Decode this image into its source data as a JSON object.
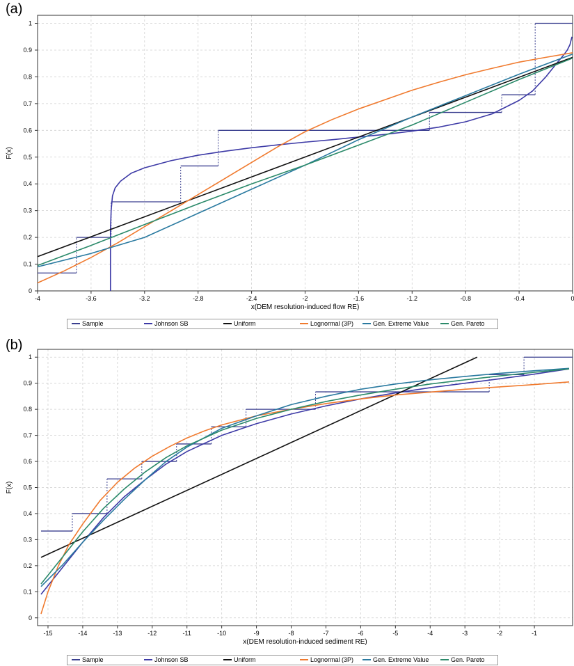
{
  "panels": [
    {
      "label": "(a)",
      "chart_data": {
        "type": "line",
        "title": "",
        "xlabel": "x(DEM resolution-induced flow RE)",
        "ylabel": "F(x)",
        "xlim": [
          -4,
          0
        ],
        "ylim": [
          0,
          1.03
        ],
        "xticks": [
          -4,
          -3.6,
          -3.2,
          -2.8,
          -2.4,
          -2,
          -1.6,
          -1.2,
          -0.8,
          -0.4,
          0
        ],
        "xtick_labels": [
          "-4",
          "-3.6",
          "-3.2",
          "-2.8",
          "-2.4",
          "-2",
          "-1.6",
          "-1.2",
          "-0.8",
          "-0.4",
          "0"
        ],
        "yticks": [
          0,
          0.1,
          0.2,
          0.3,
          0.4,
          0.5,
          0.6,
          0.7,
          0.8,
          0.9,
          1
        ],
        "ytick_labels": [
          "0",
          "0.1",
          "0.2",
          "0.3",
          "0.4",
          "0.5",
          "0.6",
          "0.7",
          "0.8",
          "0.9",
          "1"
        ],
        "grid": true,
        "legend_position": "bottom",
        "series": [
          {
            "name": "Sample",
            "kind": "step",
            "color": "#3a3f8f",
            "x": [
              -4,
              -3.71,
              -3.71,
              -3.45,
              -3.45,
              -2.93,
              -2.93,
              -2.65,
              -2.65,
              -1.07,
              -1.07,
              -0.53,
              -0.53,
              -0.28,
              -0.28,
              0
            ],
            "y": [
              0.067,
              0.067,
              0.2,
              0.2,
              0.333,
              0.333,
              0.467,
              0.467,
              0.6,
              0.6,
              0.667,
              0.667,
              0.733,
              0.733,
              1.0,
              1.0
            ]
          },
          {
            "name": "Johnson SB",
            "kind": "line",
            "color": "#3d3aa6",
            "x": [
              -3.455,
              -3.455,
              -3.45,
              -3.44,
              -3.42,
              -3.38,
              -3.3,
              -3.2,
              -3.0,
              -2.8,
              -2.6,
              -2.4,
              -2.2,
              -2.0,
              -1.8,
              -1.6,
              -1.4,
              -1.2,
              -1.0,
              -0.8,
              -0.6,
              -0.4,
              -0.3,
              -0.2,
              -0.12,
              -0.07,
              -0.04,
              -0.02,
              -0.005
            ],
            "y": [
              0.0,
              0.23,
              0.3,
              0.355,
              0.385,
              0.41,
              0.44,
              0.46,
              0.487,
              0.507,
              0.522,
              0.535,
              0.546,
              0.556,
              0.565,
              0.575,
              0.585,
              0.597,
              0.612,
              0.632,
              0.662,
              0.712,
              0.747,
              0.8,
              0.85,
              0.88,
              0.9,
              0.92,
              0.95
            ]
          },
          {
            "name": "Uniform",
            "kind": "line",
            "color": "#111111",
            "x": [
              -4,
              0
            ],
            "y": [
              0.128,
              0.873
            ]
          },
          {
            "name": "Lognormal (3P)",
            "kind": "line",
            "color": "#f07a2e",
            "x": [
              -4.0,
              -3.8,
              -3.6,
              -3.4,
              -3.2,
              -3.0,
              -2.8,
              -2.6,
              -2.4,
              -2.2,
              -2.0,
              -1.8,
              -1.6,
              -1.4,
              -1.2,
              -1.0,
              -0.8,
              -0.6,
              -0.4,
              -0.2,
              0.0
            ],
            "y": [
              0.03,
              0.075,
              0.125,
              0.18,
              0.24,
              0.3,
              0.36,
              0.42,
              0.48,
              0.54,
              0.595,
              0.64,
              0.68,
              0.715,
              0.75,
              0.78,
              0.808,
              0.832,
              0.855,
              0.873,
              0.89
            ]
          },
          {
            "name": "Gen. Extreme Value",
            "kind": "line",
            "color": "#2a7aa0",
            "x": [
              -4.0,
              -3.6,
              -3.2,
              -2.8,
              -2.4,
              -2.0,
              -1.6,
              -1.2,
              -0.8,
              -0.4,
              0.0
            ],
            "y": [
              0.09,
              0.14,
              0.2,
              0.29,
              0.38,
              0.47,
              0.565,
              0.65,
              0.73,
              0.81,
              0.885
            ]
          },
          {
            "name": "Gen. Pareto",
            "kind": "line",
            "color": "#2b8a6a",
            "x": [
              -4.0,
              -3.6,
              -3.2,
              -2.8,
              -2.4,
              -2.0,
              -1.6,
              -1.2,
              -0.8,
              -0.4,
              0.0
            ],
            "y": [
              0.095,
              0.17,
              0.248,
              0.325,
              0.4,
              0.47,
              0.545,
              0.62,
              0.705,
              0.79,
              0.87
            ]
          }
        ]
      }
    },
    {
      "label": "(b)",
      "chart_data": {
        "type": "line",
        "title": "",
        "xlabel": "x(DEM resolution-induced sediment RE)",
        "ylabel": "F(x)",
        "xlim": [
          -15.3,
          0.1
        ],
        "ylim": [
          -0.03,
          1.03
        ],
        "xticks": [
          -15,
          -14,
          -13,
          -12,
          -11,
          -10,
          -9,
          -8,
          -7,
          -6,
          -5,
          -4,
          -3,
          -2,
          -1
        ],
        "xtick_labels": [
          "-15",
          "-14",
          "-13",
          "-12",
          "-11",
          "-10",
          "-9",
          "-8",
          "-7",
          "-6",
          "-5",
          "-4",
          "-3",
          "-2",
          "-1"
        ],
        "yticks": [
          0,
          0.1,
          0.2,
          0.3,
          0.4,
          0.5,
          0.6,
          0.7,
          0.8,
          0.9,
          1
        ],
        "ytick_labels": [
          "0",
          "0.1",
          "0.2",
          "0.3",
          "0.4",
          "0.5",
          "0.6",
          "0.7",
          "0.8",
          "0.9",
          "1"
        ],
        "grid": true,
        "legend_position": "bottom",
        "series": [
          {
            "name": "Sample",
            "kind": "step",
            "color": "#3a3f8f",
            "x": [
              -15.2,
              -14.3,
              -14.3,
              -13.3,
              -13.3,
              -12.3,
              -12.3,
              -11.3,
              -11.3,
              -10.3,
              -10.3,
              -9.3,
              -9.3,
              -7.3,
              -7.3,
              -2.3,
              -2.3,
              -1.3,
              -1.3,
              0.1
            ],
            "y": [
              0.333,
              0.333,
              0.4,
              0.4,
              0.533,
              0.533,
              0.6,
              0.6,
              0.667,
              0.667,
              0.733,
              0.733,
              0.8,
              0.8,
              0.867,
              0.867,
              0.933,
              0.933,
              1.0,
              1.0
            ]
          },
          {
            "name": "Johnson SB",
            "kind": "line",
            "color": "#3d3aa6",
            "x": [
              -15.2,
              -14.6,
              -14.0,
              -13.4,
              -12.8,
              -12.2,
              -11.6,
              -11.0,
              -10.0,
              -9.0,
              -8.0,
              -7.0,
              -6.0,
              -5.0,
              -4.0,
              -3.0,
              -2.0,
              -1.0,
              0.0
            ],
            "y": [
              0.09,
              0.19,
              0.29,
              0.385,
              0.465,
              0.53,
              0.59,
              0.638,
              0.7,
              0.745,
              0.782,
              0.813,
              0.84,
              0.863,
              0.883,
              0.9,
              0.917,
              0.935,
              0.955
            ]
          },
          {
            "name": "Uniform",
            "kind": "line",
            "color": "#111111",
            "x": [
              -15.2,
              -2.65
            ],
            "y": [
              0.232,
              1.0
            ]
          },
          {
            "name": "Lognormal (3P)",
            "kind": "line",
            "color": "#f07a2e",
            "x": [
              -15.2,
              -15.0,
              -14.7,
              -14.4,
              -14.0,
              -13.5,
              -13.0,
              -12.5,
              -12.0,
              -11.5,
              -11.0,
              -10.5,
              -10.0,
              -9.0,
              -8.0,
              -7.0,
              -6.0,
              -5.0,
              -4.0,
              -3.0,
              -2.0,
              -1.0,
              0.0
            ],
            "y": [
              0.015,
              0.1,
              0.2,
              0.28,
              0.36,
              0.45,
              0.52,
              0.575,
              0.62,
              0.657,
              0.69,
              0.717,
              0.74,
              0.775,
              0.8,
              0.822,
              0.84,
              0.855,
              0.866,
              0.877,
              0.886,
              0.895,
              0.905
            ]
          },
          {
            "name": "Gen. Extreme Value",
            "kind": "line",
            "color": "#2a7aa0",
            "x": [
              -15.2,
              -14.6,
              -14.0,
              -13.4,
              -12.8,
              -12.2,
              -11.6,
              -11.0,
              -10.0,
              -9.0,
              -8.0,
              -7.0,
              -6.0,
              -5.0,
              -4.0,
              -3.0,
              -2.0,
              -1.0,
              0.0
            ],
            "y": [
              0.12,
              0.2,
              0.29,
              0.375,
              0.455,
              0.53,
              0.6,
              0.655,
              0.727,
              0.775,
              0.818,
              0.85,
              0.877,
              0.897,
              0.913,
              0.926,
              0.938,
              0.948,
              0.957
            ]
          },
          {
            "name": "Gen. Pareto",
            "kind": "line",
            "color": "#2b8a6a",
            "x": [
              -15.2,
              -14.6,
              -14.0,
              -13.4,
              -12.8,
              -12.2,
              -11.6,
              -11.0,
              -10.0,
              -9.0,
              -8.0,
              -7.0,
              -6.0,
              -5.0,
              -4.0,
              -3.0,
              -2.0,
              -1.0,
              0.0
            ],
            "y": [
              0.13,
              0.23,
              0.33,
              0.42,
              0.495,
              0.56,
              0.615,
              0.66,
              0.72,
              0.765,
              0.8,
              0.83,
              0.855,
              0.877,
              0.897,
              0.913,
              0.928,
              0.942,
              0.955
            ]
          }
        ]
      }
    }
  ]
}
